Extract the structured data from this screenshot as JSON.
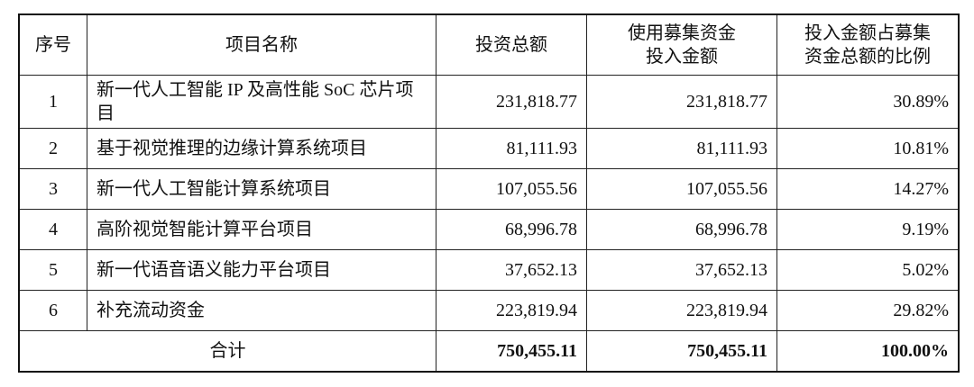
{
  "table": {
    "headers": [
      "序号",
      "项目名称",
      "投资总额",
      "使用募集资金\n投入金额",
      "投入金额占募集\n资金总额的比例"
    ],
    "header_lines": {
      "col4": [
        "使用募集资金",
        "投入金额"
      ],
      "col5": [
        "投入金额占募集",
        "资金总额的比例"
      ]
    },
    "rows": [
      {
        "no": "1",
        "name": "新一代人工智能 IP 及高性能 SoC 芯片项目",
        "total": "231,818.77",
        "raised": "231,818.77",
        "ratio": "30.89%"
      },
      {
        "no": "2",
        "name": "基于视觉推理的边缘计算系统项目",
        "total": "81,111.93",
        "raised": "81,111.93",
        "ratio": "10.81%"
      },
      {
        "no": "3",
        "name": "新一代人工智能计算系统项目",
        "total": "107,055.56",
        "raised": "107,055.56",
        "ratio": "14.27%"
      },
      {
        "no": "4",
        "name": "高阶视觉智能计算平台项目",
        "total": "68,996.78",
        "raised": "68,996.78",
        "ratio": "9.19%"
      },
      {
        "no": "5",
        "name": "新一代语音语义能力平台项目",
        "total": "37,652.13",
        "raised": "37,652.13",
        "ratio": "5.02%"
      },
      {
        "no": "6",
        "name": "补充流动资金",
        "total": "223,819.94",
        "raised": "223,819.94",
        "ratio": "29.82%"
      }
    ],
    "total_row": {
      "label": "合计",
      "total": "750,455.11",
      "raised": "750,455.11",
      "ratio": "100.00%"
    }
  }
}
